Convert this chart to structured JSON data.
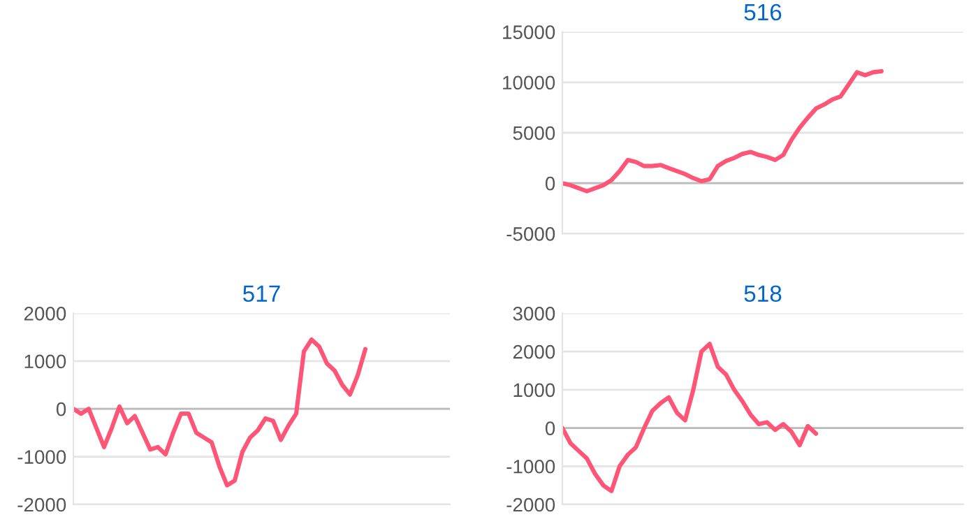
{
  "chart_data": [
    {
      "type": "line",
      "title": "516",
      "categories": [
        null,
        null,
        null,
        null,
        null,
        null,
        null,
        null,
        null,
        null,
        null,
        null,
        null,
        null,
        null,
        null,
        null,
        null,
        null,
        null,
        null,
        null,
        null,
        null,
        null,
        null,
        null,
        null,
        null,
        null,
        null,
        null,
        null,
        null,
        null,
        null,
        null,
        null,
        null,
        null,
        null,
        null,
        null,
        null,
        null,
        null,
        null,
        null,
        null,
        null
      ],
      "series": [
        {
          "color": "#ff5577",
          "values": [
            0,
            -200,
            -500,
            -800,
            -500,
            -200,
            300,
            1200,
            2300,
            2100,
            1700,
            1700,
            1800,
            1500,
            1200,
            900,
            500,
            200,
            400,
            1700,
            2200,
            2500,
            2900,
            3100,
            2800,
            2600,
            2300,
            2800,
            4300,
            5500,
            6500,
            7400,
            7800,
            8300,
            8600,
            9800,
            11000,
            10700,
            11000,
            11100,
            null,
            null,
            null,
            null,
            null,
            null,
            null,
            null,
            null,
            null
          ]
        }
      ],
      "ylim": [
        -5000,
        15000
      ],
      "yticks": [
        -5000,
        0,
        5000,
        10000,
        15000
      ],
      "grid": "y",
      "tick_labels": "y",
      "marker": "none",
      "line_style": "solid"
    },
    {
      "type": "line",
      "title": "517",
      "categories": [
        null,
        null,
        null,
        null,
        null,
        null,
        null,
        null,
        null,
        null,
        null,
        null,
        null,
        null,
        null,
        null,
        null,
        null,
        null,
        null,
        null,
        null,
        null,
        null,
        null,
        null,
        null,
        null,
        null,
        null,
        null,
        null,
        null,
        null,
        null,
        null,
        null,
        null,
        null,
        null,
        null,
        null,
        null,
        null,
        null,
        null,
        null,
        null,
        null,
        null
      ],
      "series": [
        {
          "color": "#ff5577",
          "values": [
            0,
            -100,
            0,
            -400,
            -800,
            -400,
            50,
            -300,
            -150,
            -500,
            -850,
            -800,
            -950,
            -500,
            -100,
            -100,
            -500,
            -600,
            -700,
            -1200,
            -1600,
            -1500,
            -900,
            -600,
            -450,
            -200,
            -250,
            -650,
            -350,
            -100,
            1200,
            1450,
            1300,
            950,
            800,
            500,
            300,
            700,
            1250,
            null,
            null,
            null,
            null,
            null,
            null,
            null,
            null,
            null,
            null,
            null
          ]
        }
      ],
      "ylim": [
        -2000,
        2000
      ],
      "yticks": [
        -2000,
        -1000,
        0,
        1000,
        2000
      ],
      "grid": "y",
      "tick_labels": "y",
      "marker": "none",
      "line_style": "solid"
    },
    {
      "type": "line",
      "title": "518",
      "categories": [
        null,
        null,
        null,
        null,
        null,
        null,
        null,
        null,
        null,
        null,
        null,
        null,
        null,
        null,
        null,
        null,
        null,
        null,
        null,
        null,
        null,
        null,
        null,
        null,
        null,
        null,
        null,
        null,
        null,
        null,
        null,
        null,
        null,
        null,
        null,
        null,
        null,
        null,
        null,
        null,
        null,
        null,
        null,
        null,
        null,
        null,
        null,
        null,
        null,
        null
      ],
      "series": [
        {
          "color": "#ff5577",
          "values": [
            0,
            -400,
            -600,
            -800,
            -1200,
            -1500,
            -1650,
            -1000,
            -700,
            -500,
            0,
            450,
            650,
            800,
            400,
            200,
            1000,
            2000,
            2200,
            1600,
            1400,
            1000,
            700,
            350,
            100,
            150,
            -50,
            100,
            -100,
            -450,
            50,
            -150,
            null,
            null,
            null,
            null,
            null,
            null,
            null,
            null,
            null,
            null,
            null,
            null,
            null,
            null,
            null,
            null,
            null,
            null
          ]
        }
      ],
      "ylim": [
        -2000,
        3000
      ],
      "yticks": [
        -2000,
        -1000,
        0,
        1000,
        2000,
        3000
      ],
      "grid": "y",
      "tick_labels": "y",
      "marker": "none",
      "line_style": "solid"
    }
  ]
}
